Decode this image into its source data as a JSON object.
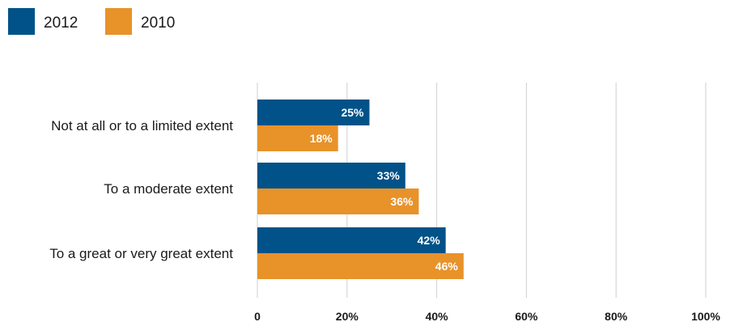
{
  "chart_data": {
    "type": "bar",
    "orientation": "horizontal",
    "categories": [
      "Not at all or to a limited extent",
      "To a moderate extent",
      "To a great or very great extent"
    ],
    "series": [
      {
        "name": "2012",
        "color": "#005288",
        "values": [
          25,
          33,
          42
        ],
        "labels": [
          "25%",
          "33%",
          "42%"
        ]
      },
      {
        "name": "2010",
        "color": "#E8922A",
        "values": [
          18,
          36,
          46
        ],
        "labels": [
          "18%",
          "36%",
          "46%"
        ]
      }
    ],
    "xlim": [
      0,
      100
    ],
    "x_ticks": [
      0,
      20,
      40,
      60,
      80,
      100
    ],
    "x_tick_labels": [
      "0",
      "20%",
      "40%",
      "60%",
      "80%",
      "100%"
    ],
    "grid": true,
    "legend_position": "top-left"
  }
}
